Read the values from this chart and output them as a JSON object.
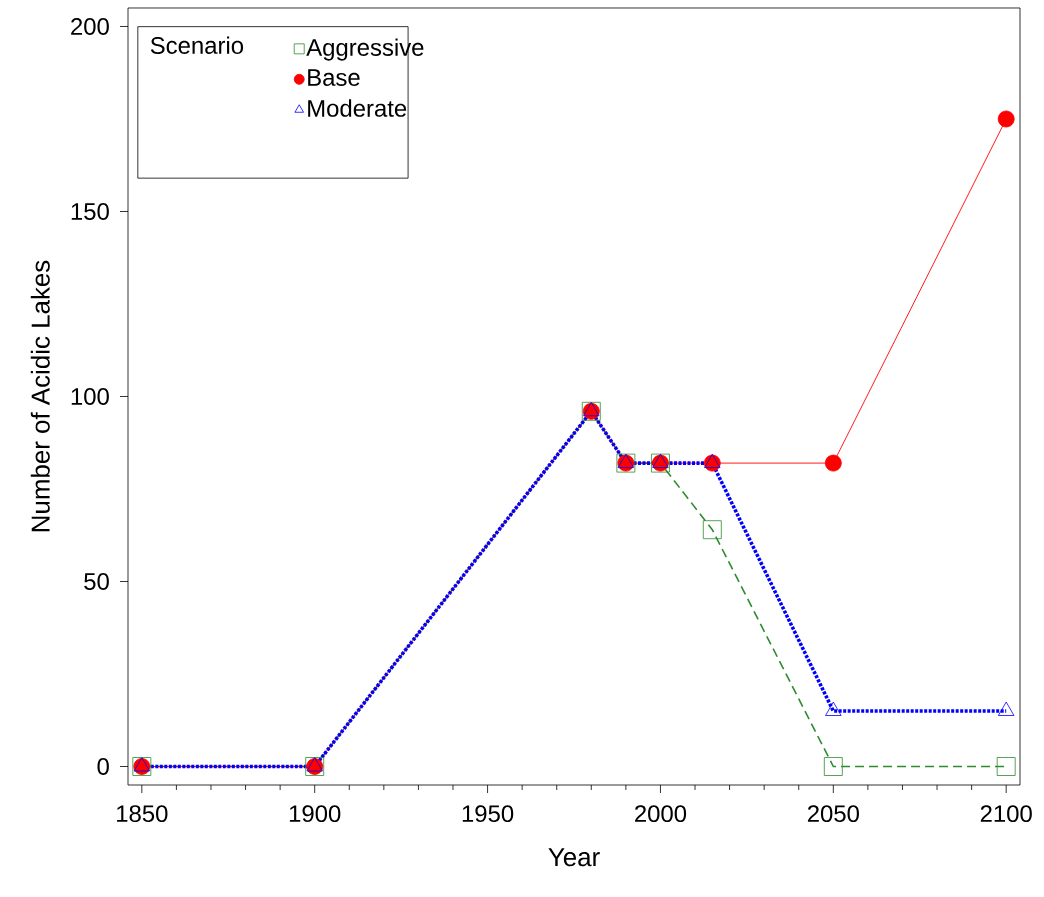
{
  "chart_data": {
    "type": "line",
    "xlabel": "Year",
    "ylabel": "Number of Acidic Lakes",
    "legend_title": "Scenario",
    "legend": "top left",
    "grid": false,
    "x": [
      1850,
      1900,
      1980,
      1990,
      2000,
      2015,
      2050,
      2100
    ],
    "series": [
      {
        "name": "Aggressive",
        "color": "#2e8b2e",
        "marker": "square",
        "line_style": "dashed",
        "values": [
          0,
          0,
          96,
          82,
          82,
          64,
          0,
          0
        ]
      },
      {
        "name": "Base",
        "color": "#ff0000",
        "marker": "circle",
        "line_style": "solid",
        "values": [
          0,
          0,
          96,
          82,
          82,
          82,
          82,
          175
        ]
      },
      {
        "name": "Moderate",
        "color": "#0000ff",
        "marker": "triangle",
        "line_style": "dotted",
        "values": [
          0,
          0,
          96,
          82,
          82,
          82,
          15,
          15
        ]
      }
    ],
    "xlim": [
      1846,
      2104
    ],
    "ylim": [
      -5,
      205
    ],
    "xticks": [
      1850,
      {
        "value": 1860,
        "label": null
      },
      {
        "value": 1870,
        "label": null
      },
      {
        "value": 1880,
        "label": null
      },
      {
        "value": 1890,
        "label": null
      },
      1900,
      {
        "value": 1910,
        "label": null
      },
      {
        "value": 1920,
        "label": null
      },
      {
        "value": 1930,
        "label": null
      },
      {
        "value": 1940,
        "label": null
      },
      1950,
      {
        "value": 1960,
        "label": null
      },
      {
        "value": 1970,
        "label": null
      },
      {
        "value": 1980,
        "label": null
      },
      {
        "value": 1990,
        "label": null
      },
      2000,
      {
        "value": 2010,
        "label": null
      },
      {
        "value": 2020,
        "label": null
      },
      {
        "value": 2030,
        "label": null
      },
      {
        "value": 2040,
        "label": null
      },
      2050,
      {
        "value": 2060,
        "label": null
      },
      {
        "value": 2070,
        "label": null
      },
      {
        "value": 2080,
        "label": null
      },
      {
        "value": 2090,
        "label": null
      },
      2100
    ],
    "yticks": [
      0,
      50,
      100,
      150,
      200
    ]
  }
}
